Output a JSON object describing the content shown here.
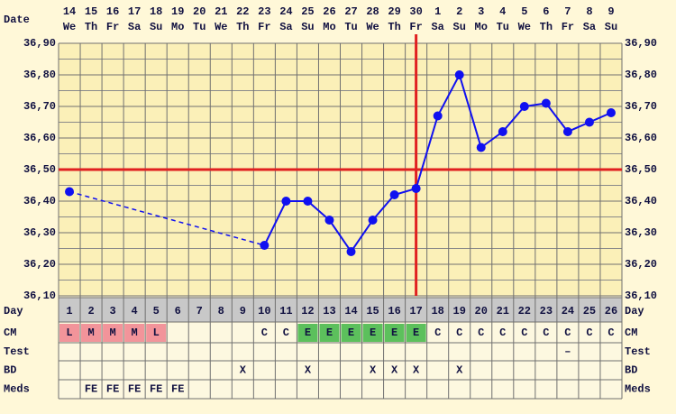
{
  "chart_data": {
    "type": "line",
    "x_label": "Date",
    "categories": [
      "14",
      "15",
      "16",
      "17",
      "18",
      "19",
      "20",
      "21",
      "22",
      "23",
      "24",
      "25",
      "26",
      "27",
      "28",
      "29",
      "30",
      "1",
      "2",
      "3",
      "4",
      "5",
      "6",
      "7",
      "8",
      "9"
    ],
    "weekdays": [
      "We",
      "Th",
      "Fr",
      "Sa",
      "Su",
      "Mo",
      "Tu",
      "We",
      "Th",
      "Fr",
      "Sa",
      "Su",
      "Mo",
      "Tu",
      "We",
      "Th",
      "Fr",
      "Sa",
      "Su",
      "Mo",
      "Tu",
      "We",
      "Th",
      "Fr",
      "Sa",
      "Su"
    ],
    "series": [
      {
        "color": "#1010f0",
        "values": [
          36.43,
          null,
          null,
          null,
          null,
          null,
          null,
          null,
          null,
          36.26,
          36.4,
          36.4,
          36.34,
          36.24,
          36.34,
          36.42,
          36.44,
          36.67,
          36.8,
          36.57,
          36.62,
          36.7,
          36.71,
          36.62,
          36.65,
          36.68
        ]
      }
    ],
    "gap_style": "dashed",
    "ylim": [
      36.1,
      36.9
    ],
    "yticks": [
      {
        "value": 36.1,
        "label": "36,10"
      },
      {
        "value": 36.2,
        "label": "36,20"
      },
      {
        "value": 36.3,
        "label": "36,30"
      },
      {
        "value": 36.4,
        "label": "36,40"
      },
      {
        "value": 36.5,
        "label": "36,50"
      },
      {
        "value": 36.6,
        "label": "36,60"
      },
      {
        "value": 36.7,
        "label": "36,70"
      },
      {
        "value": 36.8,
        "label": "36,80"
      },
      {
        "value": 36.9,
        "label": "36,90"
      }
    ],
    "minor_yticks": [
      36.15,
      36.25,
      36.35,
      36.45,
      36.55,
      36.65,
      36.75,
      36.85
    ],
    "grid": true,
    "coverline": {
      "value": 36.5,
      "color": "#e02020"
    },
    "ovulation_day": 17,
    "ovulation_color": "#e02020",
    "day_label": "Day",
    "days": [
      1,
      2,
      3,
      4,
      5,
      6,
      7,
      8,
      9,
      10,
      11,
      12,
      13,
      14,
      15,
      16,
      17,
      18,
      19,
      20,
      21,
      22,
      23,
      24,
      25,
      26
    ],
    "rows": [
      {
        "label": "CM",
        "values": [
          "L",
          "M",
          "M",
          "M",
          "L",
          null,
          null,
          null,
          null,
          "C",
          "C",
          "E",
          "E",
          "E",
          "E",
          "E",
          "E",
          "C",
          "C",
          "C",
          "C",
          "C",
          "C",
          "C",
          "C",
          "C"
        ]
      },
      {
        "label": "Test",
        "values": [
          null,
          null,
          null,
          null,
          null,
          null,
          null,
          null,
          null,
          null,
          null,
          null,
          null,
          null,
          null,
          null,
          null,
          null,
          null,
          null,
          null,
          null,
          null,
          "–",
          null,
          null
        ]
      },
      {
        "label": "BD",
        "values": [
          null,
          null,
          null,
          null,
          null,
          null,
          null,
          null,
          "X",
          null,
          null,
          "X",
          null,
          null,
          "X",
          "X",
          "X",
          null,
          "X",
          null,
          null,
          null,
          null,
          null,
          null,
          null
        ]
      },
      {
        "label": "Meds",
        "values": [
          null,
          "FE",
          "FE",
          "FE",
          "FE",
          "FE",
          null,
          null,
          null,
          null,
          null,
          null,
          null,
          null,
          null,
          null,
          null,
          null,
          null,
          null,
          null,
          null,
          null,
          null,
          null,
          null
        ]
      }
    ],
    "cell_colors": {
      "L": "#f2949a",
      "M": "#f2949a",
      "E": "#5cc05c"
    }
  }
}
